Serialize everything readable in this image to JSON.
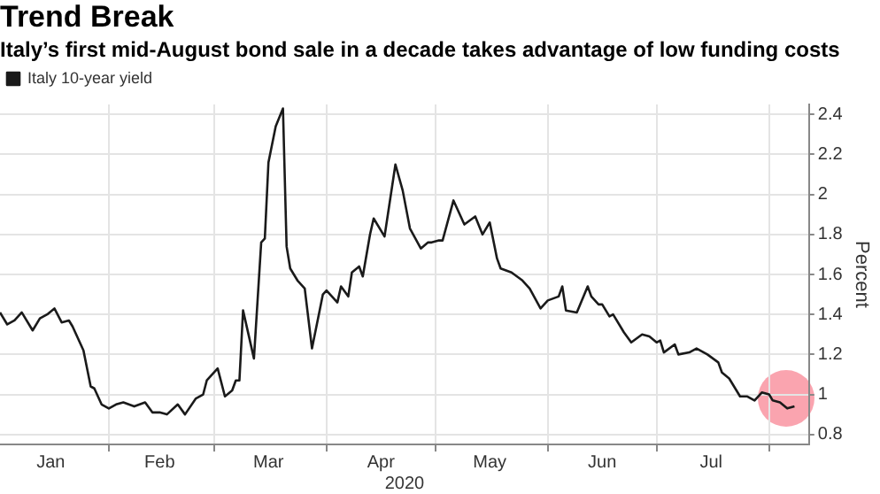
{
  "chart_data": {
    "type": "line",
    "title": "Trend Break",
    "subtitle": "Italy’s first mid-August bond sale in a decade takes advantage of low funding costs",
    "xlabel": "2020",
    "ylabel": "Percent",
    "x": [
      "2020-01-02",
      "2020-01-04",
      "2020-01-06",
      "2020-01-08",
      "2020-01-11",
      "2020-01-13",
      "2020-01-15",
      "2020-01-17",
      "2020-01-19",
      "2020-01-21",
      "2020-01-22",
      "2020-01-24",
      "2020-01-25",
      "2020-01-27",
      "2020-01-28",
      "2020-01-30",
      "2020-02-01",
      "2020-02-03",
      "2020-02-05",
      "2020-02-08",
      "2020-02-11",
      "2020-02-13",
      "2020-02-15",
      "2020-02-17",
      "2020-02-20",
      "2020-02-22",
      "2020-02-25",
      "2020-02-27",
      "2020-02-28",
      "2020-03-02",
      "2020-03-04",
      "2020-03-06",
      "2020-03-07",
      "2020-03-08",
      "2020-03-09",
      "2020-03-12",
      "2020-03-14",
      "2020-03-15",
      "2020-03-16",
      "2020-03-18",
      "2020-03-20",
      "2020-03-21",
      "2020-03-22",
      "2020-03-24",
      "2020-03-26",
      "2020-03-28",
      "2020-03-30",
      "2020-03-31",
      "2020-04-01",
      "2020-04-04",
      "2020-04-05",
      "2020-04-07",
      "2020-04-08",
      "2020-04-10",
      "2020-04-11",
      "2020-04-13",
      "2020-04-14",
      "2020-04-17",
      "2020-04-18",
      "2020-04-20",
      "2020-04-22",
      "2020-04-24",
      "2020-04-27",
      "2020-04-29",
      "2020-04-30",
      "2020-05-02",
      "2020-05-03",
      "2020-05-06",
      "2020-05-09",
      "2020-05-12",
      "2020-05-14",
      "2020-05-16",
      "2020-05-18",
      "2020-05-19",
      "2020-05-22",
      "2020-05-25",
      "2020-05-27",
      "2020-05-30",
      "2020-06-01",
      "2020-06-04",
      "2020-06-05",
      "2020-06-06",
      "2020-06-09",
      "2020-06-12",
      "2020-06-13",
      "2020-06-15",
      "2020-06-16",
      "2020-06-18",
      "2020-06-19",
      "2020-06-22",
      "2020-06-24",
      "2020-06-27",
      "2020-06-29",
      "2020-07-01",
      "2020-07-02",
      "2020-07-03",
      "2020-07-06",
      "2020-07-07",
      "2020-07-10",
      "2020-07-12",
      "2020-07-15",
      "2020-07-18",
      "2020-07-19",
      "2020-07-21",
      "2020-07-24",
      "2020-07-26",
      "2020-07-28",
      "2020-07-30",
      "2020-08-01",
      "2020-08-02",
      "2020-08-04",
      "2020-08-06",
      "2020-08-08"
    ],
    "series": [
      {
        "name": "Italy 10-year yield",
        "color": "#1a1a1a",
        "values": [
          1.41,
          1.35,
          1.37,
          1.41,
          1.32,
          1.38,
          1.4,
          1.43,
          1.36,
          1.37,
          1.34,
          1.26,
          1.22,
          1.04,
          1.03,
          0.95,
          0.93,
          0.95,
          0.96,
          0.94,
          0.96,
          0.91,
          0.91,
          0.9,
          0.95,
          0.9,
          0.98,
          1.0,
          1.07,
          1.13,
          0.99,
          1.02,
          1.07,
          1.07,
          1.42,
          1.18,
          1.76,
          1.78,
          2.16,
          2.34,
          2.43,
          1.74,
          1.63,
          1.57,
          1.53,
          1.23,
          1.41,
          1.5,
          1.52,
          1.46,
          1.54,
          1.49,
          1.61,
          1.64,
          1.59,
          1.8,
          1.88,
          1.79,
          1.91,
          2.15,
          2.02,
          1.83,
          1.73,
          1.76,
          1.76,
          1.77,
          1.77,
          1.97,
          1.85,
          1.89,
          1.8,
          1.86,
          1.68,
          1.63,
          1.61,
          1.57,
          1.53,
          1.43,
          1.47,
          1.49,
          1.54,
          1.42,
          1.41,
          1.54,
          1.49,
          1.45,
          1.45,
          1.39,
          1.4,
          1.31,
          1.26,
          1.3,
          1.29,
          1.26,
          1.27,
          1.21,
          1.25,
          1.2,
          1.21,
          1.23,
          1.2,
          1.16,
          1.11,
          1.08,
          0.99,
          0.99,
          0.97,
          1.01,
          1.0,
          0.97,
          0.96,
          0.93,
          0.94
        ]
      }
    ],
    "xlim": [
      "2020-01-02",
      "2020-08-12"
    ],
    "xticks": [
      {
        "value": "2020-02-01",
        "label": null
      },
      {
        "value": "2020-03-01",
        "label": null
      },
      {
        "value": "2020-04-01",
        "label": null
      },
      {
        "value": "2020-05-01",
        "label": null
      },
      {
        "value": "2020-06-01",
        "label": null
      },
      {
        "value": "2020-07-01",
        "label": null
      },
      {
        "value": "2020-08-01",
        "label": null
      },
      {
        "value": "2020-01-16",
        "label": "Jan"
      },
      {
        "value": "2020-02-15",
        "label": "Feb"
      },
      {
        "value": "2020-03-16",
        "label": "Mar"
      },
      {
        "value": "2020-04-16",
        "label": "Apr"
      },
      {
        "value": "2020-05-16",
        "label": "May"
      },
      {
        "value": "2020-06-16",
        "label": "Jun"
      },
      {
        "value": "2020-07-16",
        "label": "Jul"
      }
    ],
    "ylim": [
      0.75,
      2.45
    ],
    "yticks": [
      0.8,
      1.0,
      1.2,
      1.4,
      1.6,
      1.8,
      2.0,
      2.2,
      2.4
    ],
    "grid": true,
    "legend": "top left",
    "marker": "none",
    "line_style": "solid"
  }
}
